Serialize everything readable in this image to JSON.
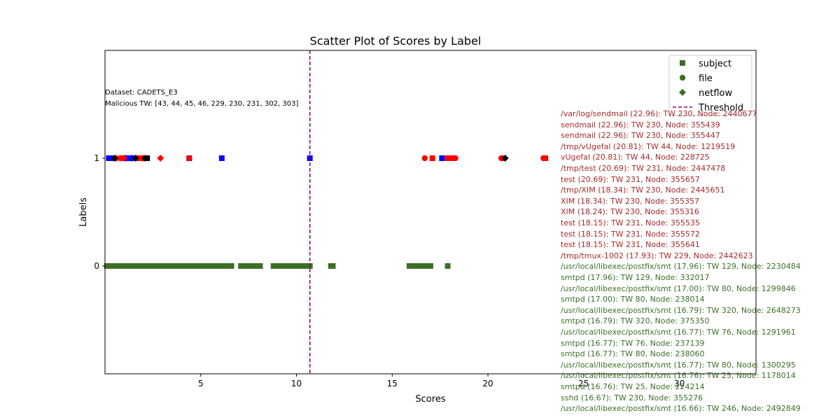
{
  "chart_data": {
    "type": "scatter",
    "title": "Scatter Plot of Scores by Label",
    "xlabel": "Scores",
    "ylabel": "Labels",
    "xlim": [
      0,
      34
    ],
    "ylim": [
      -1,
      2
    ],
    "xticks": [
      5,
      10,
      15,
      20,
      25,
      30
    ],
    "yticks": [
      0,
      1
    ],
    "grid": false,
    "legend_position": "top-right",
    "threshold": {
      "name": "Threshold",
      "x": 10.7,
      "color": "#800080",
      "style": "dashed"
    },
    "legend": [
      {
        "name": "subject",
        "marker": "square",
        "color": "#3b7026"
      },
      {
        "name": "file",
        "marker": "circle",
        "color": "#3b7026"
      },
      {
        "name": "netflow",
        "marker": "diamond",
        "color": "#3b7026"
      },
      {
        "name": "Threshold",
        "marker": "dashed-line",
        "color": "#800080"
      }
    ],
    "series": [
      {
        "label": 0,
        "color": "#3b7026",
        "marker": "square",
        "segments": [
          [
            0.1,
            2.1
          ],
          [
            2.1,
            3.3
          ],
          [
            3.3,
            4.4
          ],
          [
            4.4,
            5.3
          ],
          [
            5.3,
            6.6
          ],
          [
            7.1,
            8.1
          ],
          [
            8.8,
            10.6
          ],
          [
            11.8,
            11.9
          ],
          [
            15.9,
            17.0
          ]
        ],
        "points": [
          1.0,
          1.5,
          2.0,
          4.4,
          6.5,
          7.5,
          9.5,
          10.5,
          10.7,
          11.9,
          16.0,
          16.8,
          17.9
        ]
      },
      {
        "label": 1,
        "color": "#0000ff",
        "marker": "square",
        "points": [
          0.2,
          0.4,
          1.0,
          1.2,
          1.3,
          1.5,
          4.4,
          6.1,
          10.7,
          17.6
        ]
      },
      {
        "label": 1,
        "color": "#0000ff",
        "marker": "circle",
        "points": [
          1.6,
          1.9
        ]
      },
      {
        "label": 1,
        "color": "#0000ff",
        "marker": "diamond",
        "points": [
          1.1,
          1.4
        ]
      },
      {
        "label": 1,
        "color": "#ff0000",
        "marker": "square",
        "points": [
          0.9,
          1.8,
          1.9,
          17.1,
          17.9,
          18.2,
          20.8,
          23.0
        ]
      },
      {
        "label": 1,
        "color": "#ff0000",
        "marker": "circle",
        "points": [
          0.8,
          1.7,
          4.4,
          16.7,
          18.1,
          18.3,
          20.7,
          22.9
        ]
      },
      {
        "label": 1,
        "color": "#ff0000",
        "marker": "diamond",
        "points": [
          0.6,
          1.0,
          2.0,
          2.9
        ]
      },
      {
        "label": 1,
        "color": "#000000",
        "marker": "diamond",
        "points": [
          0.5,
          1.6,
          2.1,
          20.9
        ]
      },
      {
        "label": 1,
        "color": "#000000",
        "marker": "square",
        "points": [
          2.2
        ]
      }
    ]
  },
  "dataset_label": "Dataset: CADETS_E3",
  "malicious_tw": "Malicious TW: [43, 44, 45, 46, 229, 230, 231, 302, 303]",
  "annotations": [
    {
      "text": "/var/log/sendmail (22.96): TW 230, Node: 2440677",
      "color": "#a52a2a"
    },
    {
      "text": "sendmail (22.96): TW 230, Node: 355439",
      "color": "#a52a2a"
    },
    {
      "text": "sendmail (22.96): TW 230, Node: 355447",
      "color": "#a52a2a"
    },
    {
      "text": "/tmp/vUgefal (20.81): TW 44, Node: 1219519",
      "color": "#a52a2a"
    },
    {
      "text": "vUgefal (20.81): TW 44, Node: 228725",
      "color": "#a52a2a"
    },
    {
      "text": "/tmp/test (20.69): TW 231, Node: 2447478",
      "color": "#a52a2a"
    },
    {
      "text": "test (20.69): TW 231, Node: 355657",
      "color": "#a52a2a"
    },
    {
      "text": "/tmp/XIM (18.34): TW 230, Node: 2445651",
      "color": "#a52a2a"
    },
    {
      "text": "XIM (18.34): TW 230, Node: 355357",
      "color": "#a52a2a"
    },
    {
      "text": "XIM (18.24): TW 230, Node: 355316",
      "color": "#a52a2a"
    },
    {
      "text": "test (18.15): TW 231, Node: 355535",
      "color": "#a52a2a"
    },
    {
      "text": "test (18.15): TW 231, Node: 355572",
      "color": "#a52a2a"
    },
    {
      "text": "test (18.15): TW 231, Node: 355641",
      "color": "#a52a2a"
    },
    {
      "text": "/tmp/tmux-1002 (17.93): TW 229, Node: 2442623",
      "color": "#a52a2a"
    },
    {
      "text": "/usr/local/libexec/postfix/smt (17.96): TW 129, Node: 2230484",
      "color": "#3b7026"
    },
    {
      "text": "smtpd (17.96): TW 129, Node: 332017",
      "color": "#3b7026"
    },
    {
      "text": "/usr/local/libexec/postfix/smt (17.00): TW 80, Node: 1299846",
      "color": "#3b7026"
    },
    {
      "text": "smtpd (17.00): TW 80, Node: 238014",
      "color": "#3b7026"
    },
    {
      "text": "/usr/local/libexec/postfix/smt (16.79): TW 320, Node: 2648273",
      "color": "#3b7026"
    },
    {
      "text": "smtpd (16.79): TW 320, Node: 375350",
      "color": "#3b7026"
    },
    {
      "text": "/usr/local/libexec/postfix/smt (16.77): TW 76, Node: 1291961",
      "color": "#3b7026"
    },
    {
      "text": "smtpd (16.77): TW 76, Node: 237139",
      "color": "#3b7026"
    },
    {
      "text": "smtpd (16.77): TW 80, Node: 238060",
      "color": "#3b7026"
    },
    {
      "text": "/usr/local/libexec/postfix/smt (16.77): TW 80, Node: 1300295",
      "color": "#3b7026"
    },
    {
      "text": "/usr/local/libexec/postfix/smt (16.76): TW 25, Node: 1178014",
      "color": "#3b7026"
    },
    {
      "text": "smtpd (16.76): TW 25, Node: 224214",
      "color": "#3b7026"
    },
    {
      "text": "sshd (16.67): TW 230, Node: 355276",
      "color": "#3b7026"
    },
    {
      "text": "/usr/local/libexec/postfix/smt (16.66): TW 246, Node: 2492849",
      "color": "#3b7026"
    }
  ]
}
